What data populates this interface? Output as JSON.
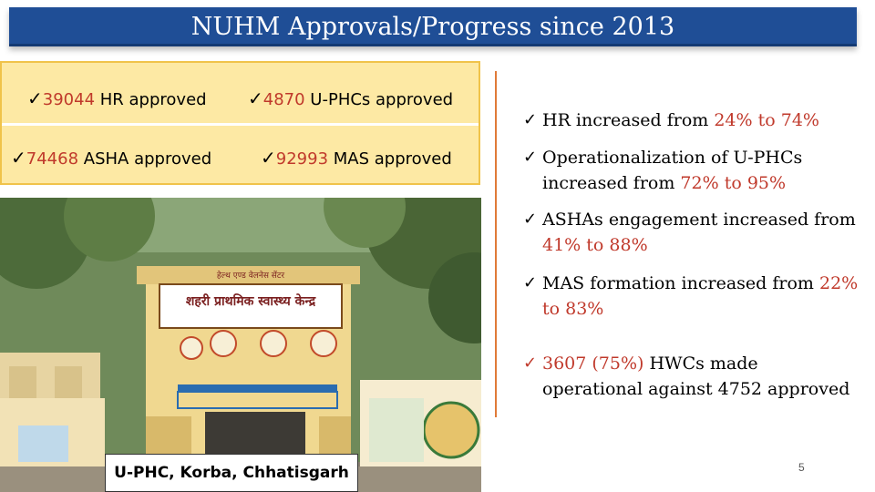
{
  "title": "NUHM Approvals/Progress since 2013",
  "stats": {
    "check": "✓",
    "hr": {
      "num": "39044",
      "text": " HR approved"
    },
    "uphc": {
      "num": "4870",
      "text": " U-PHCs approved"
    },
    "asha": {
      "num": "74468",
      "text": " ASHA approved"
    },
    "mas": {
      "num": "92993",
      "text": " MAS approved"
    }
  },
  "photo": {
    "sign_text": "शहरी प्राथमिक स्वास्थ्य केन्द्र",
    "sign_small": "हेल्थ एण्ड वेलनेस सेंटर",
    "caption": "U-PHC, Korba, Chhatisgarh"
  },
  "bullets": {
    "check": "ü",
    "b1": {
      "pre": "HR increased from ",
      "a": "24%",
      "mid": " to ",
      "b": "74%"
    },
    "b2": {
      "pre": "Operationalization of U-PHCs increased from ",
      "a": "72%",
      "mid": " to ",
      "b": "95%"
    },
    "b3": {
      "pre": "ASHAs engagement increased from ",
      "a": "41%",
      "mid": " to ",
      "b": "88%"
    },
    "b4": {
      "pre": "MAS formation increased from ",
      "a": "22%",
      "mid": " to ",
      "b": "83%"
    },
    "b5": {
      "a": "3607 (75%)",
      "post": " HWCs made operational against 4752 approved"
    }
  },
  "page_number": "5",
  "colors": {
    "title_bg": "#1f4e96",
    "stats_bg": "#fde9a4",
    "accent_red": "#c0392b",
    "divider": "#e07b39"
  }
}
